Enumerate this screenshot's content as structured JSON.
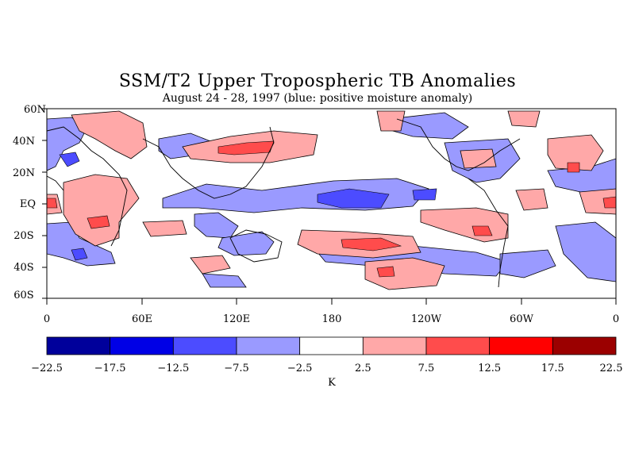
{
  "title": "SSM/T2 Upper Tropospheric TB Anomalies",
  "subtitle": "August 24 - 28, 1997 (blue: positive moisture anomaly)",
  "lat_labels": [
    "60N",
    "40N",
    "20N",
    "EQ",
    "20S",
    "40S",
    "60S"
  ],
  "lon_labels": [
    "0",
    "60E",
    "120E",
    "180",
    "120W",
    "60W",
    "0"
  ],
  "colorbar": {
    "unit": "K",
    "tick_labels": [
      "-22.5",
      "-17.5",
      "-12.5",
      "-7.5",
      "-2.5",
      "2.5",
      "7.5",
      "12.5",
      "17.5",
      "22.5"
    ],
    "colors": [
      "#00009b",
      "#0000e6",
      "#4c4cff",
      "#9a9aff",
      "#ffffff",
      "#ffa8a8",
      "#ff4c4c",
      "#ff0000",
      "#9b0000"
    ]
  }
}
